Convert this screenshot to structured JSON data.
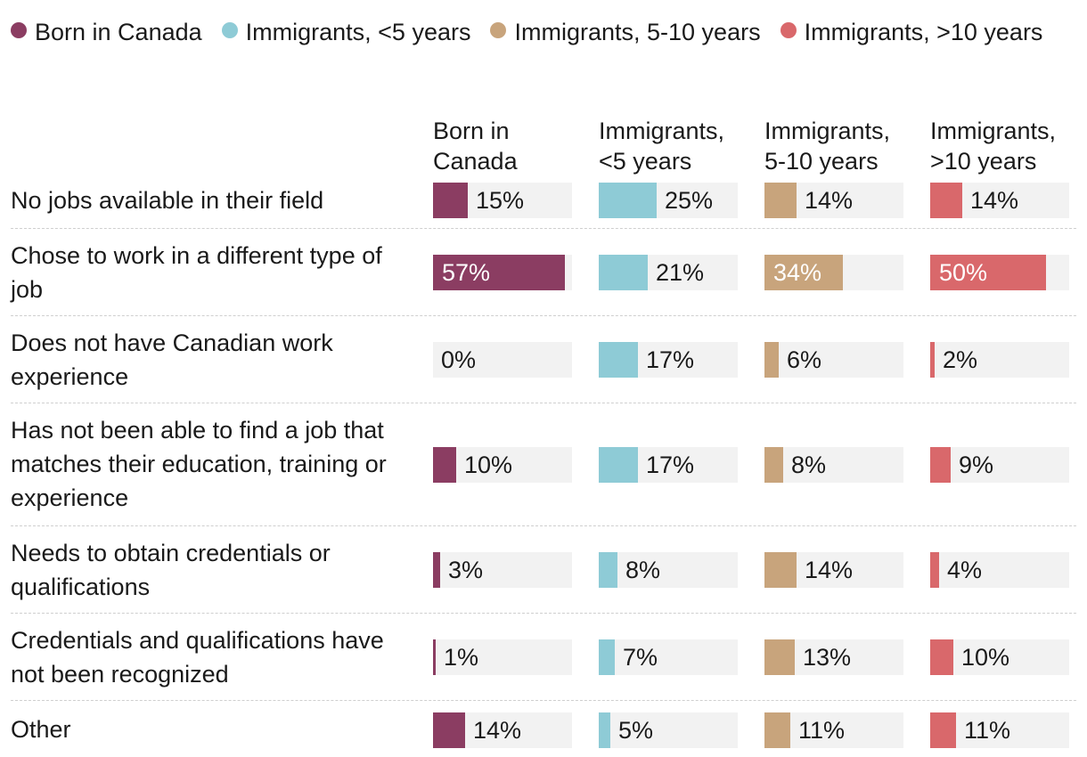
{
  "chart_data": {
    "type": "bar",
    "orientation": "horizontal",
    "layout": "small-multiples",
    "xlim": [
      0,
      60
    ],
    "legend_position": "top",
    "series": [
      {
        "name": "Born in Canada",
        "header": "Born in Canada",
        "color": "#8b3d62",
        "values": [
          15,
          57,
          0,
          10,
          3,
          1,
          14
        ]
      },
      {
        "name": "Immigrants, <5 years",
        "header": "Immigrants, <5 years",
        "color": "#8ecbd6",
        "values": [
          25,
          21,
          17,
          17,
          8,
          7,
          5
        ]
      },
      {
        "name": "Immigrants, 5-10 years",
        "header": "Immigrants, 5-10 years",
        "color": "#c8a47c",
        "values": [
          14,
          34,
          6,
          8,
          14,
          13,
          11
        ]
      },
      {
        "name": "Immigrants, >10 years",
        "header": "Immigrants, >10 years",
        "color": "#d9686b",
        "values": [
          14,
          50,
          2,
          9,
          4,
          10,
          11
        ]
      }
    ],
    "categories": [
      "No jobs available in their field",
      "Chose to work in a different type of job",
      "Does not have Canadian work experience",
      "Has not been able to find a job that matches their education, training or experience",
      "Needs to obtain credentials or qualifications",
      "Credentials and qualifications have not been recognized",
      "Other"
    ],
    "value_suffix": "%"
  }
}
